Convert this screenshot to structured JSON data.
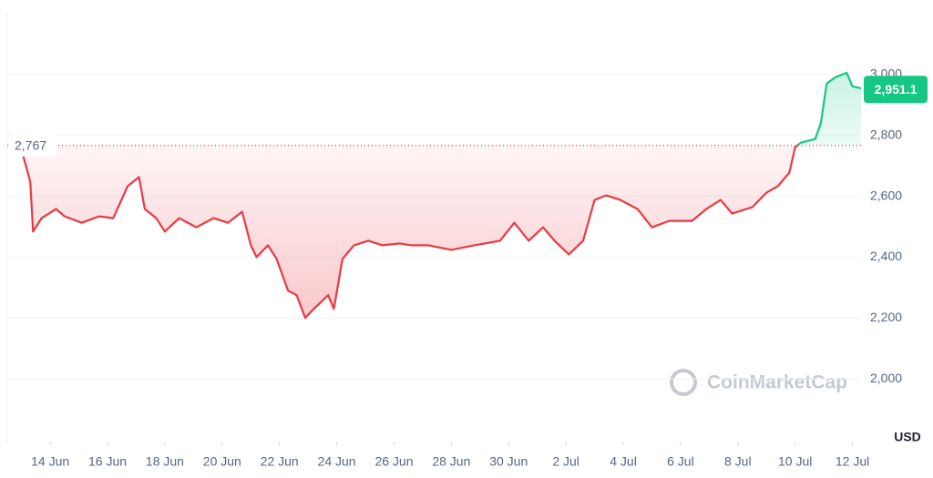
{
  "chart_data": {
    "type": "line",
    "x": [
      12.6,
      13.0,
      13.3,
      13.4,
      13.7,
      14.2,
      14.5,
      15.1,
      15.7,
      16.2,
      16.7,
      17.1,
      17.3,
      17.7,
      18.0,
      18.5,
      19.1,
      19.7,
      20.2,
      20.7,
      21.0,
      21.2,
      21.6,
      21.9,
      22.3,
      22.6,
      22.9,
      23.2,
      23.7,
      23.9,
      24.2,
      24.6,
      25.1,
      25.6,
      26.2,
      26.6,
      27.2,
      28.0,
      28.8,
      29.7,
      30.2,
      30.7,
      31.2,
      31.6,
      32.1,
      32.6,
      33.0,
      33.4,
      33.9,
      34.5,
      35.0,
      35.6,
      36.4,
      36.9,
      37.4,
      37.8,
      38.5,
      39.0,
      39.4,
      39.8,
      40.0,
      40.2,
      40.7,
      40.9,
      41.1,
      41.4,
      41.8,
      42.0,
      42.3
    ],
    "series": [
      {
        "values": [
          2767,
          2752,
          2648,
          2484,
          2528,
          2558,
          2534,
          2513,
          2534,
          2528,
          2633,
          2663,
          2558,
          2528,
          2484,
          2528,
          2498,
          2528,
          2513,
          2549,
          2439,
          2400,
          2439,
          2394,
          2290,
          2275,
          2200,
          2230,
          2275,
          2230,
          2394,
          2439,
          2454,
          2439,
          2445,
          2439,
          2439,
          2424,
          2439,
          2454,
          2513,
          2454,
          2498,
          2454,
          2409,
          2454,
          2588,
          2603,
          2588,
          2558,
          2498,
          2519,
          2519,
          2558,
          2588,
          2543,
          2564,
          2612,
          2633,
          2678,
          2761,
          2776,
          2788,
          2842,
          2970,
          2991,
          3006,
          2961,
          2955
        ],
        "color_below": "#ea3943",
        "color_above": "#16c784"
      }
    ],
    "reference_line": {
      "value": 2767,
      "label": "2,767"
    },
    "current_price": {
      "value": 2951.1,
      "label": "2,951.1"
    },
    "xlim": [
      12.5,
      42.3
    ],
    "xticks": [
      {
        "value": 14,
        "label": "14 Jun"
      },
      {
        "value": 16,
        "label": "16 Jun"
      },
      {
        "value": 18,
        "label": "18 Jun"
      },
      {
        "value": 20,
        "label": "20 Jun"
      },
      {
        "value": 22,
        "label": "22 Jun"
      },
      {
        "value": 24,
        "label": "24 Jun"
      },
      {
        "value": 26,
        "label": "26 Jun"
      },
      {
        "value": 28,
        "label": "28 Jun"
      },
      {
        "value": 30,
        "label": "30 Jun"
      },
      {
        "value": 32,
        "label": "2 Jul"
      },
      {
        "value": 34,
        "label": "4 Jul"
      },
      {
        "value": 36,
        "label": "6 Jul"
      },
      {
        "value": 38,
        "label": "8 Jul"
      },
      {
        "value": 40,
        "label": "10 Jul"
      },
      {
        "value": 42,
        "label": "12 Jul"
      }
    ],
    "ylim": [
      1794,
      3200
    ],
    "yticks": [
      {
        "value": 2000,
        "label": "2,000"
      },
      {
        "value": 2200,
        "label": "2,200"
      },
      {
        "value": 2400,
        "label": "2,400"
      },
      {
        "value": 2600,
        "label": "2,600"
      },
      {
        "value": 2800,
        "label": "2,800"
      },
      {
        "value": 3000,
        "label": "3,000"
      }
    ],
    "currency": "USD",
    "watermark": "CoinMarketCap",
    "grid": true
  }
}
